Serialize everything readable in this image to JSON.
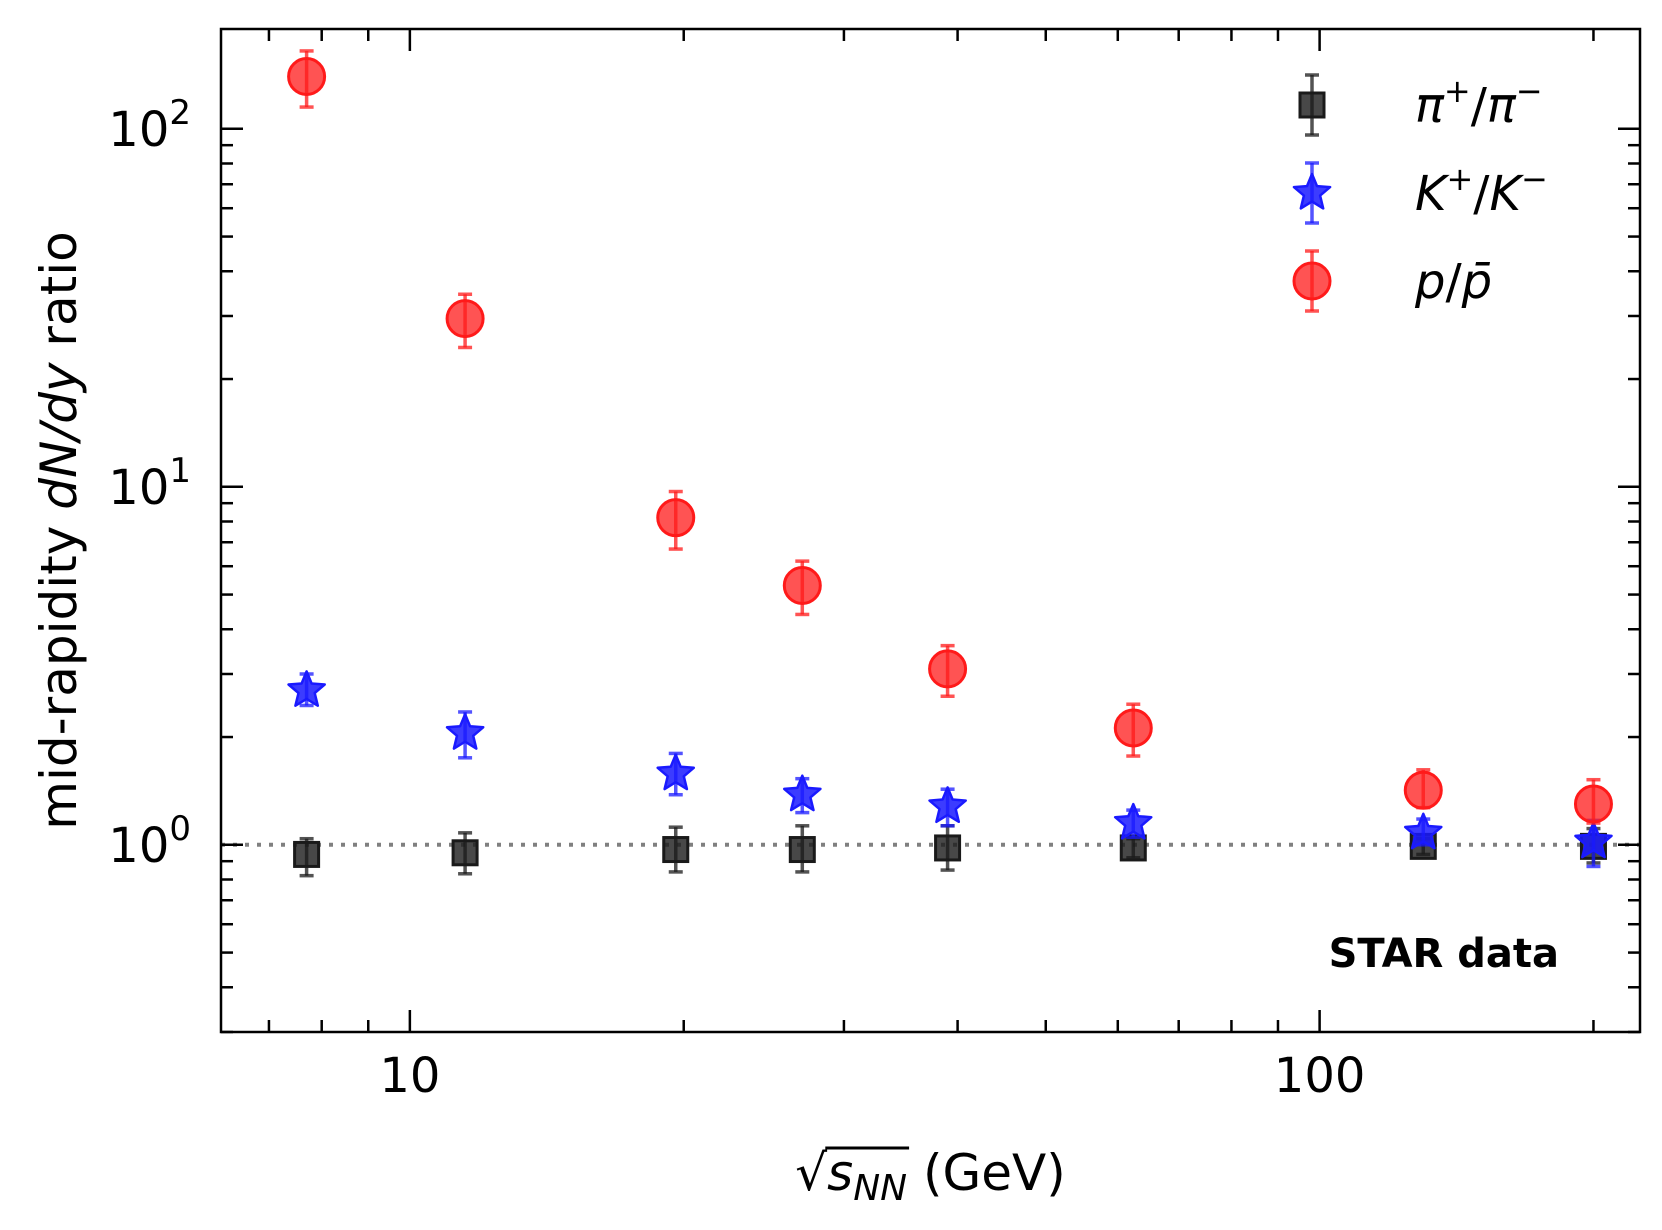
{
  "chart_data": {
    "type": "scatter",
    "title": "",
    "xlabel": {
      "prefix": "√",
      "main": "s",
      "subscript": "NN",
      "suffix": " (GeV)"
    },
    "ylabel": {
      "prefix": "mid-rapidity ",
      "italic": "dN/dy",
      "suffix": " ratio"
    },
    "xscale": "log",
    "yscale": "log",
    "xlim": [
      6.2,
      225
    ],
    "ylim": [
      0.3,
      190
    ],
    "xticks": [
      {
        "value": 10,
        "label": "10"
      },
      {
        "value": 100,
        "label": "100"
      }
    ],
    "yticks": [
      {
        "value": 1,
        "base": "10",
        "exp": "0"
      },
      {
        "value": 10,
        "base": "10",
        "exp": "1"
      },
      {
        "value": 100,
        "base": "10",
        "exp": "2"
      }
    ],
    "reference_line": {
      "y": 1.0,
      "style": "dotted",
      "color": "#808080"
    },
    "legend_position": "top-right",
    "annotation": "STAR data",
    "series": [
      {
        "name": "pi",
        "label_base": "π",
        "label_sup": "+",
        "label_sep": "/",
        "label_base2": "π",
        "label_sup2": "−",
        "marker": "square",
        "color": "#1a1a1a",
        "x": [
          7.7,
          11.5,
          19.6,
          27,
          39,
          62.4,
          130,
          200
        ],
        "y": [
          0.94,
          0.95,
          0.97,
          0.97,
          0.98,
          0.98,
          0.99,
          0.99
        ],
        "yerr_low": [
          0.12,
          0.12,
          0.13,
          0.13,
          0.13,
          0.06,
          0.05,
          0.1
        ],
        "yerr_high": [
          0.1,
          0.13,
          0.15,
          0.16,
          0.15,
          0.06,
          0.05,
          0.12
        ]
      },
      {
        "name": "K",
        "label_base": "K",
        "label_sup": "+",
        "label_sep": "/",
        "label_base2": "K",
        "label_sup2": "−",
        "marker": "star",
        "color": "#1a1aff",
        "x": [
          7.7,
          11.5,
          19.6,
          27,
          39,
          62.4,
          130,
          200
        ],
        "y": [
          2.7,
          2.05,
          1.58,
          1.38,
          1.28,
          1.15,
          1.08,
          1.02
        ],
        "yerr_low": [
          0.25,
          0.3,
          0.2,
          0.15,
          0.15,
          0.1,
          0.08,
          0.15
        ],
        "yerr_high": [
          0.3,
          0.3,
          0.22,
          0.15,
          0.15,
          0.1,
          0.1,
          0.15
        ]
      },
      {
        "name": "p",
        "label_base": "p",
        "label_sup": "",
        "label_sep": "/",
        "label_base2": "p̄",
        "label_sup2": "",
        "marker": "circle",
        "color": "#ff1a1a",
        "x": [
          7.7,
          11.5,
          19.6,
          27,
          39,
          62.4,
          130,
          200
        ],
        "y": [
          140,
          29.5,
          8.2,
          5.3,
          3.1,
          2.12,
          1.42,
          1.3
        ],
        "yerr_low": [
          25,
          5,
          1.5,
          0.9,
          0.5,
          0.35,
          0.15,
          0.15
        ],
        "yerr_high": [
          25,
          5,
          1.5,
          0.9,
          0.5,
          0.35,
          0.2,
          0.22
        ]
      }
    ]
  }
}
